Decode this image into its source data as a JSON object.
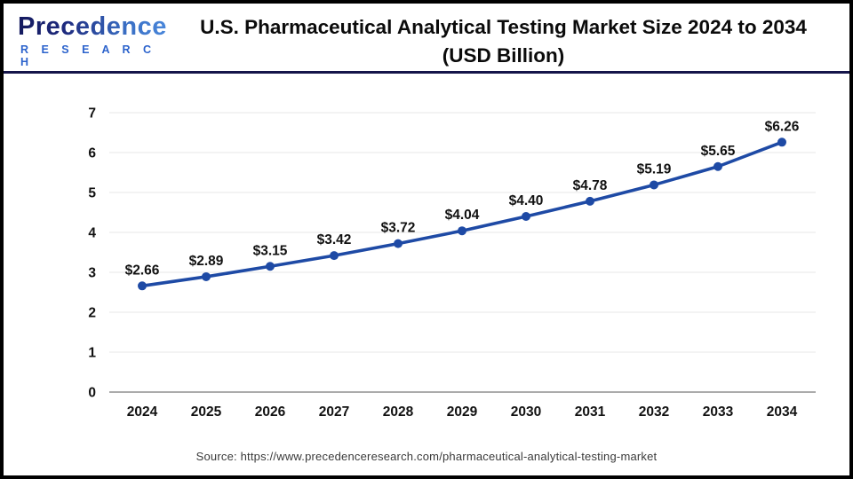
{
  "brand": {
    "name": "Precedence",
    "subname": "R E S E A R C H"
  },
  "header": {
    "title_line1": "U.S. Pharmaceutical Analytical Testing Market Size 2024 to 2034",
    "title_line2": "(USD Billion)"
  },
  "source": {
    "text": "Source: https://www.precedenceresearch.com/pharmaceutical-analytical-testing-market"
  },
  "colors": {
    "line": "#1e4aa5",
    "marker": "#1e4aa5",
    "grid": "#ececec",
    "zero_axis": "#ababab",
    "divider": "#15154a",
    "text": "#111111",
    "brand_dark": "#141a5e",
    "brand_light": "#4b8ade",
    "source_text": "#3a3a3a"
  },
  "chart_data": {
    "type": "line",
    "title": "U.S. Pharmaceutical Analytical Testing Market Size 2024 to 2034 (USD Billion)",
    "series_name": "U.S. Pharmaceutical Analytical Testing Market Size (USD Billion)",
    "categories": [
      "2024",
      "2025",
      "2026",
      "2027",
      "2028",
      "2029",
      "2030",
      "2031",
      "2032",
      "2033",
      "2034"
    ],
    "values": [
      2.66,
      2.89,
      3.15,
      3.42,
      3.72,
      4.04,
      4.4,
      4.78,
      5.19,
      5.65,
      6.26
    ],
    "point_labels": [
      "$2.66",
      "$2.89",
      "$3.15",
      "$3.42",
      "$3.72",
      "$4.04",
      "$4.40",
      "$4.78",
      "$5.19",
      "$5.65",
      "$6.26"
    ],
    "xlabel": "",
    "ylabel": "",
    "ylim": [
      0,
      7
    ],
    "yticks": [
      0,
      1,
      2,
      3,
      4,
      5,
      6,
      7
    ],
    "grid": true,
    "legend_position": "none"
  }
}
